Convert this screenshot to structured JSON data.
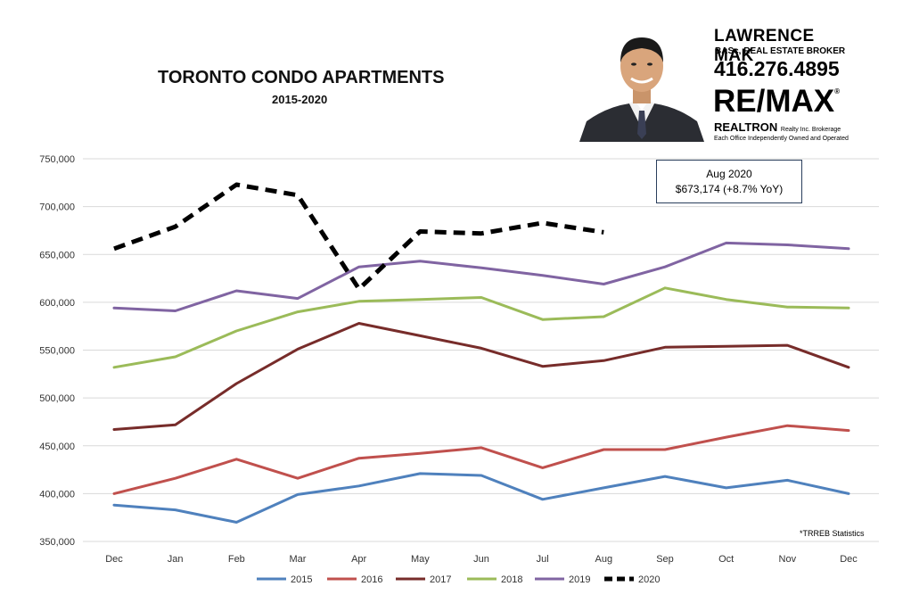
{
  "chart_data": {
    "type": "line",
    "title": "TORONTO CONDO APARTMENTS",
    "subtitle": "2015-2020",
    "categories": [
      "Dec",
      "Jan",
      "Feb",
      "Mar",
      "Apr",
      "May",
      "Jun",
      "Jul",
      "Aug",
      "Sep",
      "Oct",
      "Nov",
      "Dec"
    ],
    "ylim": [
      350000,
      750000
    ],
    "yticks": [
      "350,000",
      "400,000",
      "450,000",
      "500,000",
      "550,000",
      "600,000",
      "650,000",
      "700,000",
      "750,000"
    ],
    "grid": true,
    "legend_position": "bottom",
    "series": [
      {
        "name": "2015",
        "color": "#4f81bd",
        "dashed": false,
        "values": [
          388000,
          383000,
          370000,
          399000,
          408000,
          421000,
          419000,
          394000,
          406000,
          418000,
          406000,
          414000,
          400000
        ]
      },
      {
        "name": "2016",
        "color": "#c0504d",
        "dashed": false,
        "values": [
          400000,
          416000,
          436000,
          416000,
          437000,
          442000,
          448000,
          427000,
          446000,
          446000,
          459000,
          471000,
          466000
        ]
      },
      {
        "name": "2017",
        "color": "#772c2a",
        "dashed": false,
        "values": [
          467000,
          472000,
          515000,
          551000,
          578000,
          565000,
          552000,
          533000,
          539000,
          553000,
          554000,
          555000,
          532000
        ]
      },
      {
        "name": "2018",
        "color": "#9bbb59",
        "dashed": false,
        "values": [
          532000,
          543000,
          570000,
          590000,
          601000,
          603000,
          605000,
          582000,
          585000,
          615000,
          603000,
          595000,
          594000
        ]
      },
      {
        "name": "2019",
        "color": "#8064a2",
        "dashed": false,
        "values": [
          594000,
          591000,
          612000,
          604000,
          637000,
          643000,
          636000,
          628000,
          619000,
          637000,
          662000,
          660000,
          656000
        ]
      },
      {
        "name": "2020",
        "color": "#000000",
        "dashed": true,
        "values": [
          656000,
          679000,
          723000,
          712000,
          614000,
          674000,
          672000,
          683000,
          673174,
          null,
          null,
          null,
          null
        ]
      }
    ],
    "annotations": [
      {
        "line1": "Aug 2020",
        "line2": "$673,174  (+8.7% YoY)"
      },
      {
        "text": "*TRREB Statistics"
      }
    ]
  },
  "agent": {
    "name": "LAWRENCE MAK",
    "title": "BASc, REAL ESTATE BROKER",
    "phone": "416.276.4895",
    "brand": "RE/MAX",
    "office": "REALTRON",
    "office_sub": "Realty Inc. Brokerage",
    "disclaimer": "Each Office Independently Owned and Operated"
  }
}
